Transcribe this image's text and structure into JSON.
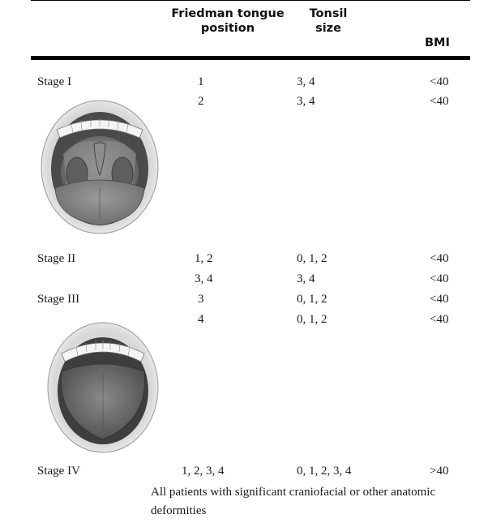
{
  "table": {
    "headers": {
      "tongue_position_line1": "Friedman tongue",
      "tongue_position_line2": "position",
      "tonsil_size_line1": "Tonsil",
      "tonsil_size_line2": "size",
      "bmi": "BMI"
    },
    "rows": [
      {
        "stage": "Stage I",
        "tongue": "1",
        "tonsil": "3, 4",
        "bmi": "<40"
      },
      {
        "stage": "",
        "tongue": "2",
        "tonsil": "3, 4",
        "bmi": "<40"
      },
      {
        "stage": "Stage II",
        "tongue": "1, 2",
        "tonsil": "0, 1, 2",
        "bmi": "<40"
      },
      {
        "stage": "",
        "tongue": "3, 4",
        "tonsil": "3, 4",
        "bmi": "<40"
      },
      {
        "stage": "Stage III",
        "tongue": "3",
        "tonsil": "0, 1, 2",
        "bmi": "<40"
      },
      {
        "stage": "",
        "tongue": "4",
        "tonsil": "0, 1, 2",
        "bmi": "<40"
      },
      {
        "stage": "Stage IV",
        "tongue": "1, 2, 3, 4",
        "tonsil": "0, 1, 2, 3, 4",
        "bmi": ">40"
      }
    ],
    "footnote": "All patients with significant craniofacial or other anatomic deformities"
  },
  "illustrations": {
    "upper": "open-mouth-visible-tonsils-illustration",
    "lower": "open-mouth-tongue-illustration"
  }
}
